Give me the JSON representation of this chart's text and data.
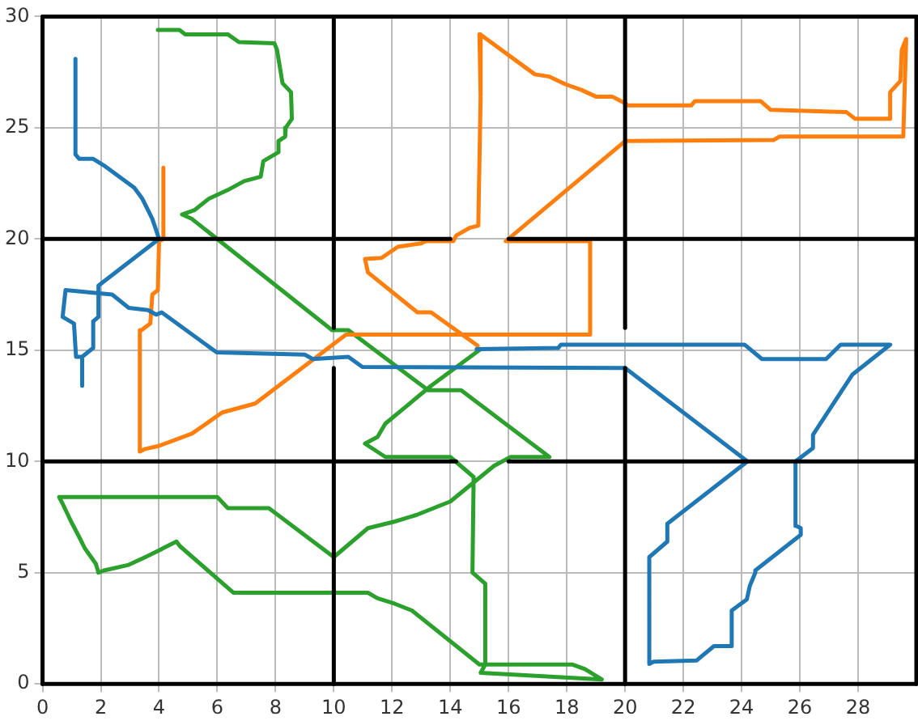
{
  "chart_data": {
    "type": "line",
    "xlim": [
      0,
      30
    ],
    "ylim": [
      0,
      30
    ],
    "xticks": [
      0,
      2,
      4,
      6,
      8,
      10,
      12,
      14,
      16,
      18,
      20,
      22,
      24,
      26,
      28
    ],
    "yticks": [
      0,
      5,
      10,
      15,
      20,
      25,
      30
    ],
    "grid": true,
    "legend": false,
    "marker": "none",
    "line_style": "solid",
    "series": [
      {
        "color": "#000000",
        "x": [
          0,
          30
        ],
        "values": [
          0,
          0
        ]
      },
      {
        "color": "#000000",
        "x": [
          30,
          30
        ],
        "values": [
          0,
          30
        ]
      },
      {
        "color": "#000000",
        "x": [
          0,
          30
        ],
        "values": [
          30,
          30
        ]
      },
      {
        "color": "#000000",
        "x": [
          0,
          0
        ],
        "values": [
          0,
          30
        ]
      },
      {
        "color": "#000000",
        "x": [
          10,
          10
        ],
        "values": [
          0,
          14.2
        ]
      },
      {
        "color": "#000000",
        "x": [
          10,
          10
        ],
        "values": [
          16,
          30
        ]
      },
      {
        "color": "#000000",
        "x": [
          20,
          20
        ],
        "values": [
          0,
          14.2
        ]
      },
      {
        "color": "#000000",
        "x": [
          20,
          20
        ],
        "values": [
          16,
          30
        ]
      },
      {
        "color": "#000000",
        "x": [
          0,
          14.2
        ],
        "values": [
          10,
          10
        ]
      },
      {
        "color": "#000000",
        "x": [
          16,
          30
        ],
        "values": [
          10,
          10
        ]
      },
      {
        "color": "#000000",
        "x": [
          0,
          14
        ],
        "values": [
          20,
          20
        ]
      },
      {
        "color": "#000000",
        "x": [
          16,
          30
        ],
        "values": [
          20,
          20
        ]
      },
      {
        "color": "#1f77b4",
        "x": [
          1.13,
          1.13,
          1.26,
          1.74,
          2.11,
          3.15,
          3.43,
          3.62,
          3.77,
          3.9,
          4.0,
          1.92,
          1.92,
          1.74,
          1.74,
          1.36,
          1.36,
          1.36,
          1.15,
          1.08,
          0.69,
          0.79,
          2.39,
          2.96,
          3.62,
          3.9,
          4.09,
          5.98,
          9.0,
          9.28,
          10.5,
          10.98,
          20.0,
          24.2,
          21.45,
          21.45,
          20.83,
          20.83,
          20.98,
          22.45,
          23.05,
          23.66,
          23.66,
          24.18,
          24.28,
          24.47,
          24.47,
          26.03,
          26.03,
          25.88,
          25.85,
          26.45,
          26.45,
          27.8,
          29.1,
          27.4,
          26.9,
          24.7,
          24.1,
          17.8,
          17.7,
          14.9
        ],
        "values": [
          28.1,
          23.8,
          23.6,
          23.6,
          23.3,
          22.3,
          21.8,
          21.3,
          20.9,
          20.4,
          20.0,
          17.9,
          16.5,
          16.3,
          15.1,
          14.7,
          13.4,
          14.7,
          14.7,
          16.2,
          16.5,
          17.7,
          17.5,
          16.9,
          16.8,
          16.6,
          16.7,
          14.9,
          14.8,
          14.6,
          14.7,
          14.25,
          14.2,
          10.0,
          7.2,
          6.4,
          5.7,
          0.9,
          1.0,
          1.05,
          1.7,
          1.7,
          3.3,
          3.8,
          4.4,
          5.0,
          5.1,
          6.7,
          7.0,
          7.1,
          10.0,
          10.6,
          11.2,
          13.9,
          15.25,
          15.25,
          14.6,
          14.6,
          15.25,
          15.25,
          15.1,
          15.05
        ]
      },
      {
        "color": "#ff7f0e",
        "x": [
          4.15,
          4.15,
          4.0,
          3.96,
          3.77,
          3.7,
          3.4,
          3.34,
          3.34,
          3.5,
          4.0,
          5.13,
          6.17,
          7.3,
          10.42,
          18.8,
          18.8,
          15.9,
          20.0,
          25.1,
          25.3,
          29.55,
          29.65,
          29.5,
          29.45,
          29.1,
          29.1,
          27.9,
          27.6,
          25.0,
          24.65,
          22.4,
          22.27,
          20.1,
          20.0,
          19.56,
          19.0,
          18.5,
          17.96,
          17.4,
          16.9,
          15.13,
          15.0,
          15.04,
          14.96,
          14.66,
          14.2,
          14.1,
          13.15,
          13.0,
          12.2,
          11.64,
          11.07,
          11.17,
          12.87,
          13.34,
          14.94
        ],
        "values": [
          23.2,
          20.0,
          19.9,
          17.7,
          17.5,
          16.2,
          15.9,
          15.9,
          10.45,
          10.55,
          10.7,
          11.25,
          12.2,
          12.6,
          15.7,
          15.7,
          19.9,
          19.9,
          24.4,
          24.45,
          24.6,
          24.6,
          29.0,
          28.5,
          27.1,
          26.6,
          25.4,
          25.4,
          25.7,
          25.8,
          26.2,
          26.2,
          26.0,
          26.0,
          26.1,
          26.4,
          26.4,
          26.7,
          26.95,
          27.3,
          27.4,
          29.1,
          29.2,
          26.4,
          20.6,
          20.5,
          20.15,
          19.9,
          19.9,
          19.8,
          19.65,
          19.15,
          19.1,
          18.5,
          16.7,
          16.7,
          15.2
        ]
      },
      {
        "color": "#2ca02c",
        "x": [
          3.96,
          4.7,
          4.9,
          6.36,
          6.74,
          7.96,
          8.05,
          8.24,
          8.53,
          8.56,
          8.35,
          8.33,
          8.1,
          8.1,
          7.58,
          7.49,
          6.92,
          6.36,
          5.7,
          5.22,
          4.79,
          5.13,
          9.94,
          10.5,
          13.24,
          14.37,
          17.4,
          16.07,
          15.5,
          14.0,
          12.85,
          12.1,
          11.17,
          10.0,
          7.77,
          6.36,
          6.0,
          0.57,
          0.69,
          0.98,
          1.26,
          1.45,
          1.83,
          1.92,
          2.11,
          2.96,
          3.53,
          4.0,
          4.29,
          4.6,
          4.71,
          6.55,
          11.17,
          11.5,
          12.1,
          12.68,
          15.0,
          18.2,
          18.62,
          19.2,
          15.04,
          15.2,
          15.2,
          14.76,
          14.8,
          14.0,
          11.77,
          11.07,
          11.5,
          11.77,
          13.34,
          15.04
        ],
        "values": [
          29.4,
          29.4,
          29.2,
          29.2,
          28.85,
          28.8,
          28.5,
          27.0,
          26.6,
          25.4,
          25.0,
          24.6,
          24.4,
          23.9,
          23.5,
          22.8,
          22.6,
          22.2,
          21.8,
          21.3,
          21.1,
          20.9,
          15.9,
          15.9,
          13.2,
          13.2,
          10.2,
          10.2,
          9.8,
          8.2,
          7.6,
          7.3,
          7.0,
          5.7,
          7.9,
          7.9,
          8.4,
          8.4,
          8.1,
          7.3,
          6.6,
          6.1,
          5.4,
          5.0,
          5.1,
          5.35,
          5.7,
          6.0,
          6.2,
          6.4,
          6.2,
          4.1,
          4.1,
          3.85,
          3.6,
          3.3,
          0.87,
          0.87,
          0.67,
          0.2,
          0.5,
          0.87,
          4.5,
          5.0,
          9.3,
          10.2,
          10.2,
          10.8,
          11.1,
          11.7,
          13.4,
          15.05
        ]
      }
    ]
  }
}
